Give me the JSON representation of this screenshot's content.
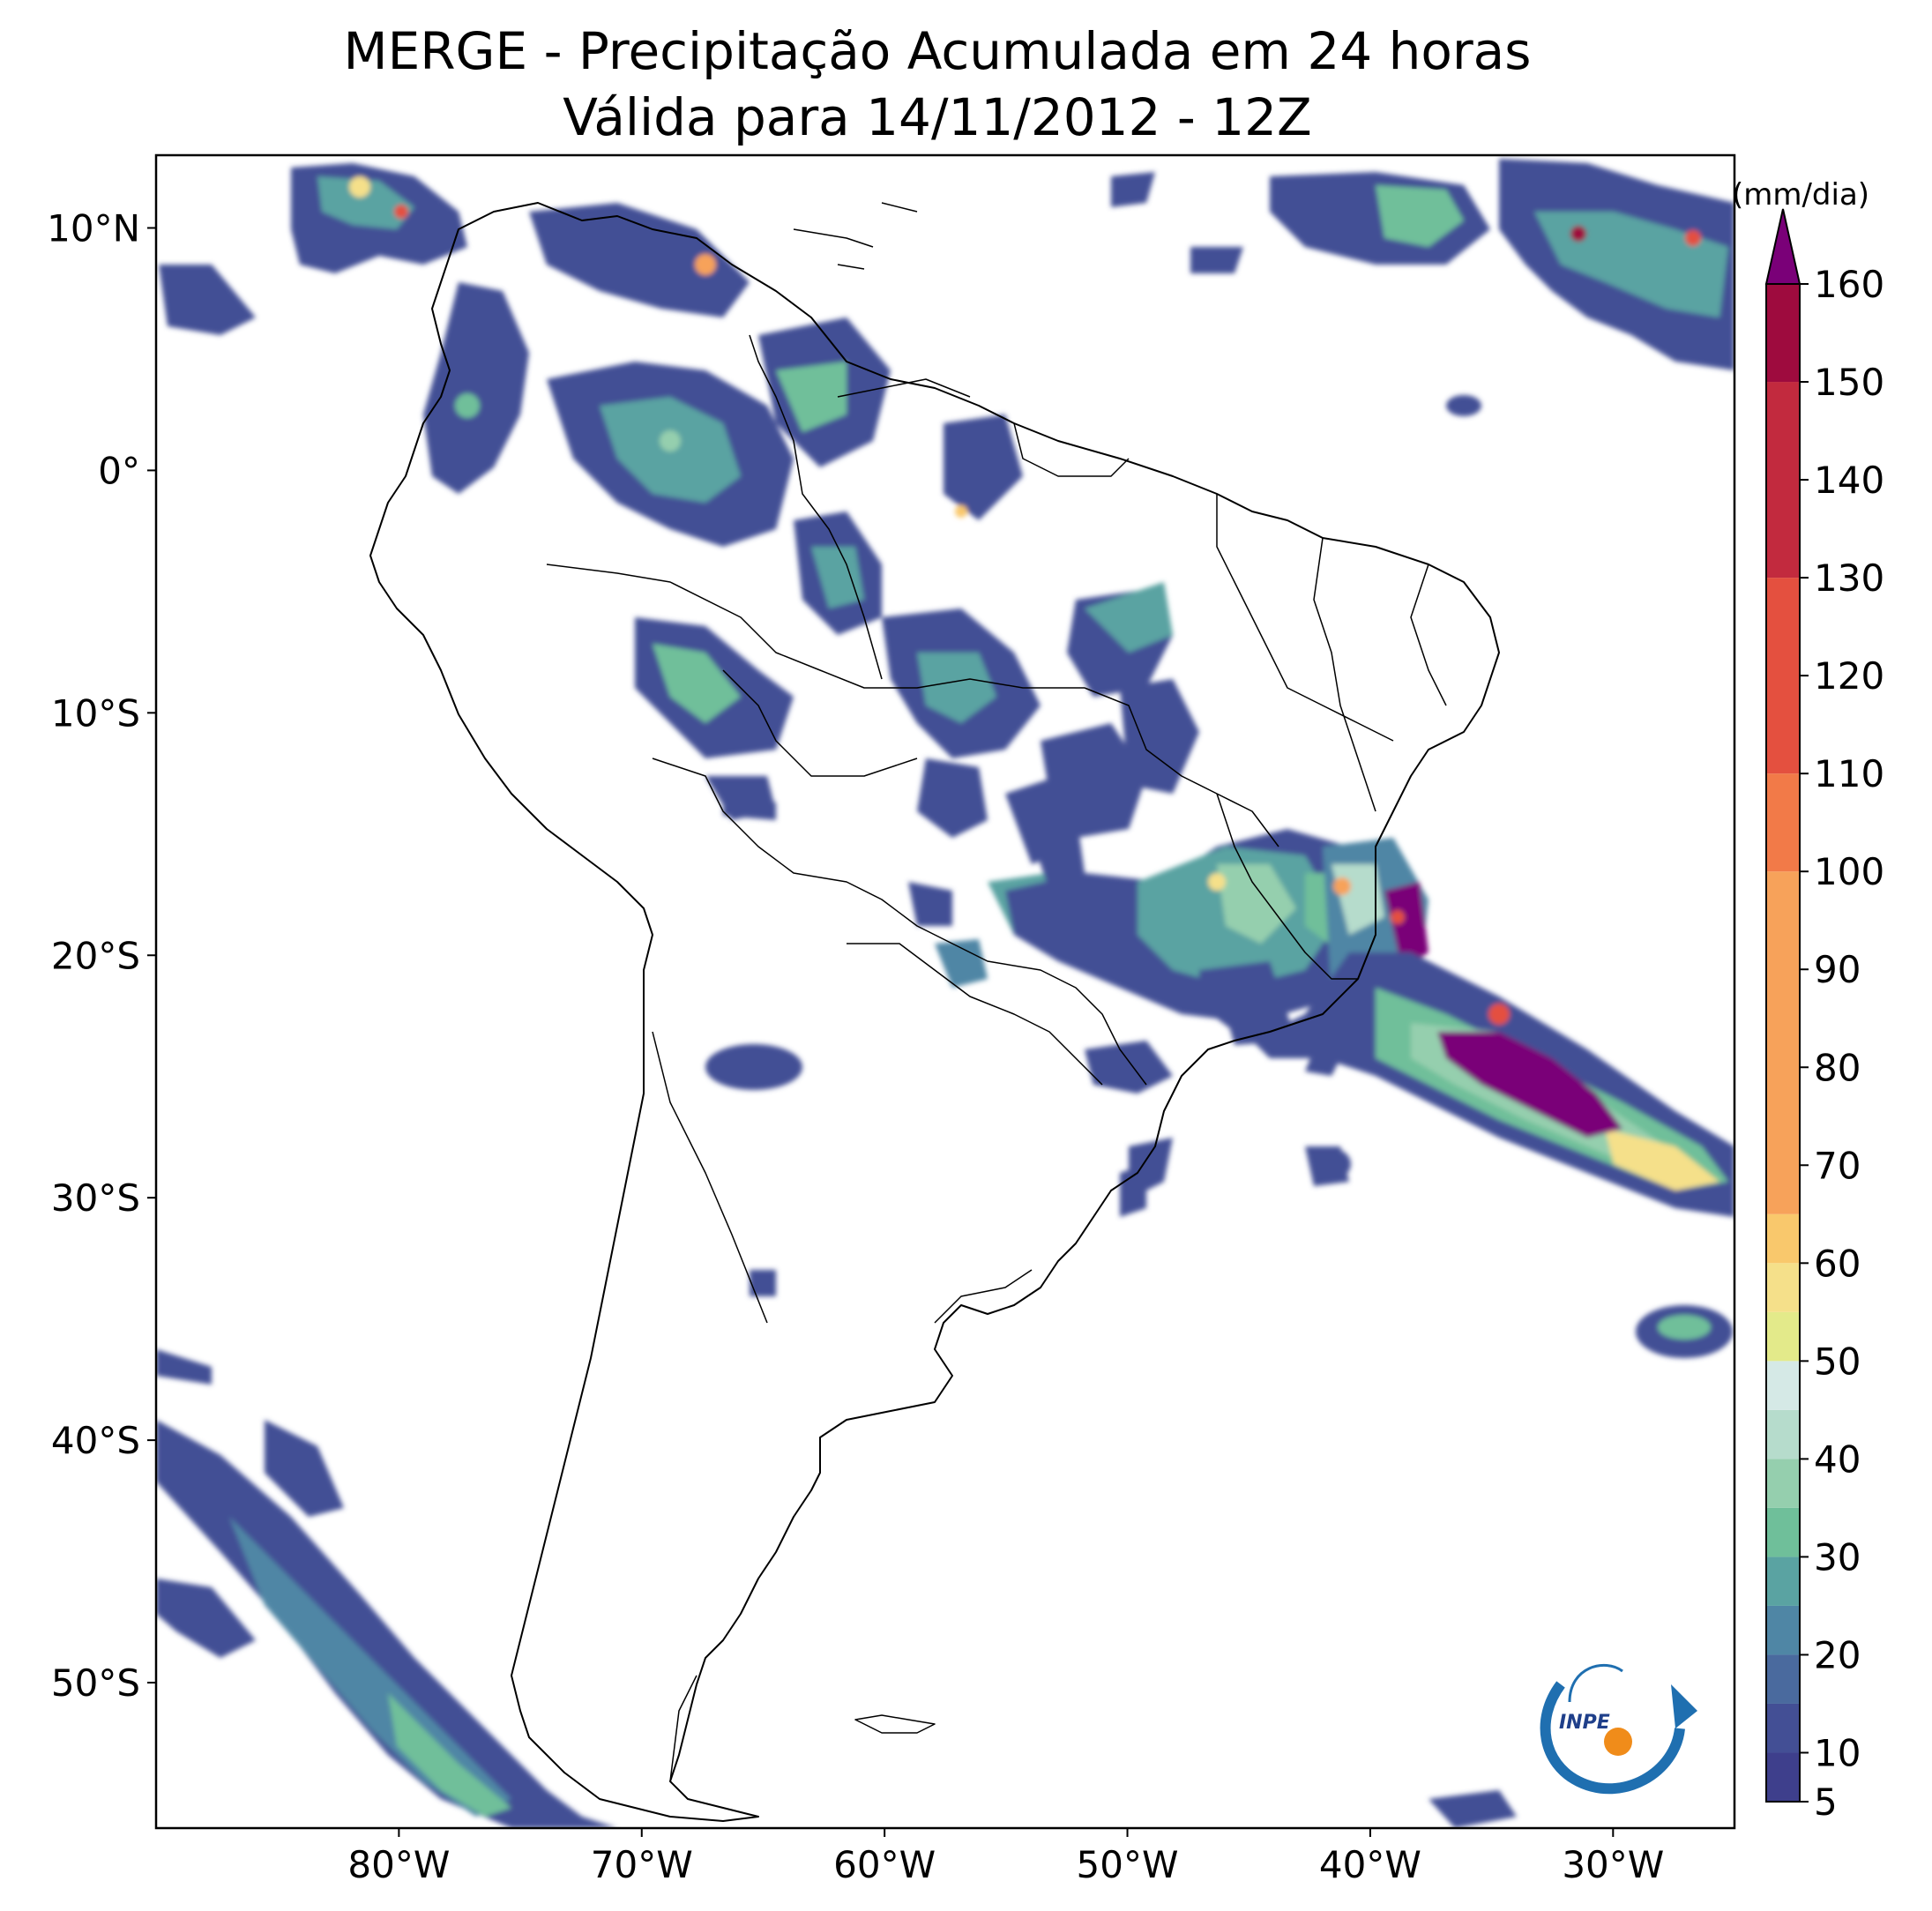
{
  "title": {
    "line1": "MERGE - Precipitação Acumulada em 24 horas",
    "line2": "Válida para 14/11/2012 - 12Z"
  },
  "map": {
    "lat_ticks": [
      "10°N",
      "0°",
      "10°S",
      "20°S",
      "30°S",
      "40°S",
      "50°S"
    ],
    "lon_ticks": [
      "80°W",
      "70°W",
      "60°W",
      "50°W",
      "40°W",
      "30°W"
    ],
    "lon_range": [
      -90,
      -25
    ],
    "lat_range": [
      -56,
      13
    ]
  },
  "colorbar": {
    "unit_label": "(mm/dia)",
    "tick_labels": [
      "5",
      "10",
      "20",
      "30",
      "40",
      "50",
      "60",
      "70",
      "80",
      "90",
      "100",
      "110",
      "120",
      "130",
      "140",
      "150",
      "160"
    ],
    "colors": [
      "#3e3f8c",
      "#434f95",
      "#4a6a9e",
      "#4f86a5",
      "#5aa3a2",
      "#6fbf9a",
      "#95cfae",
      "#b6dccc",
      "#d5e9e6",
      "#e3ea8a",
      "#f5e08a",
      "#f9c86c",
      "#f7a25a",
      "#f27a48",
      "#e4503f",
      "#c22a3e",
      "#9e0b3e",
      "#7a0078"
    ]
  },
  "logo": {
    "text": "INPE"
  }
}
